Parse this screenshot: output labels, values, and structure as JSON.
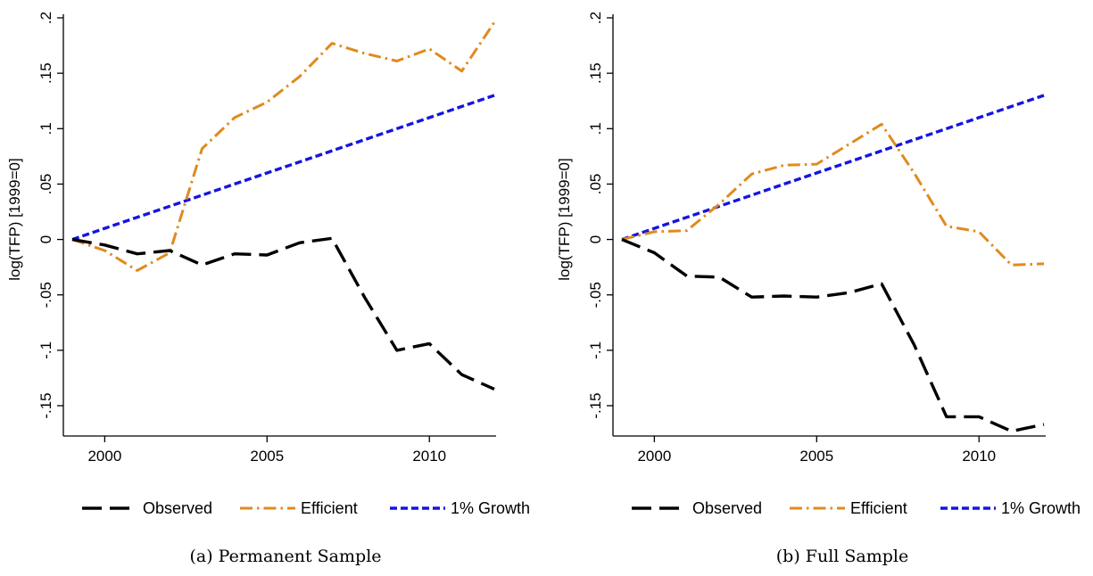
{
  "chart_data": [
    {
      "type": "line",
      "title": "",
      "caption": "(a) Permanent Sample",
      "xlabel": "",
      "ylabel": "log(TFP) [1999=0]",
      "xlim": [
        1999,
        2012
      ],
      "ylim": [
        -0.18,
        0.2
      ],
      "xticks": [
        2000,
        2005,
        2010
      ],
      "xtick_labels": [
        "2000",
        "2005",
        "2010"
      ],
      "yticks": [
        -0.15,
        -0.1,
        -0.05,
        0,
        0.05,
        0.1,
        0.15,
        0.2
      ],
      "ytick_labels": [
        "-.15",
        "-.1",
        "-.05",
        "0",
        ".05",
        ".1",
        ".15",
        ".2"
      ],
      "grid": false,
      "legend_position": "bottom",
      "x": [
        1999,
        2000,
        2001,
        2002,
        2003,
        2004,
        2005,
        2006,
        2007,
        2008,
        2009,
        2010,
        2011,
        2012
      ],
      "series": [
        {
          "name": "Observed",
          "color": "#000000",
          "style": "long-dash",
          "values": [
            0,
            -0.005,
            -0.013,
            -0.01,
            -0.023,
            -0.013,
            -0.014,
            -0.003,
            0.001,
            -0.052,
            -0.1,
            -0.094,
            -0.122,
            -0.135
          ]
        },
        {
          "name": "Efficient",
          "color": "#e08a1e",
          "style": "dash-dot",
          "values": [
            0,
            -0.01,
            -0.028,
            -0.012,
            0.082,
            0.11,
            0.124,
            0.147,
            0.177,
            0.168,
            0.161,
            0.172,
            0.152,
            0.196
          ]
        },
        {
          "name": "1% Growth",
          "color": "#1515e0",
          "style": "short-dash",
          "values": [
            0,
            0.01,
            0.02,
            0.03,
            0.04,
            0.05,
            0.06,
            0.07,
            0.08,
            0.09,
            0.1,
            0.11,
            0.12,
            0.13
          ]
        }
      ]
    },
    {
      "type": "line",
      "title": "",
      "caption": "(b) Full Sample",
      "xlabel": "",
      "ylabel": "log(TFP) [1999=0]",
      "xlim": [
        1999,
        2012
      ],
      "ylim": [
        -0.18,
        0.2
      ],
      "xticks": [
        2000,
        2005,
        2010
      ],
      "xtick_labels": [
        "2000",
        "2005",
        "2010"
      ],
      "yticks": [
        -0.15,
        -0.1,
        -0.05,
        0,
        0.05,
        0.1,
        0.15,
        0.2
      ],
      "ytick_labels": [
        "-.15",
        "-.1",
        "-.05",
        "0",
        ".05",
        ".1",
        ".15",
        ".2"
      ],
      "grid": false,
      "legend_position": "bottom",
      "x": [
        1999,
        2000,
        2001,
        2002,
        2003,
        2004,
        2005,
        2006,
        2007,
        2008,
        2009,
        2010,
        2011,
        2012
      ],
      "series": [
        {
          "name": "Observed",
          "color": "#000000",
          "style": "long-dash",
          "values": [
            0,
            -0.012,
            -0.033,
            -0.034,
            -0.052,
            -0.051,
            -0.052,
            -0.048,
            -0.04,
            -0.095,
            -0.16,
            -0.16,
            -0.173,
            -0.167
          ]
        },
        {
          "name": "Efficient",
          "color": "#e08a1e",
          "style": "dash-dot",
          "values": [
            0,
            0.007,
            0.008,
            0.032,
            0.059,
            0.067,
            0.068,
            0.086,
            0.104,
            0.06,
            0.012,
            0.007,
            -0.023,
            -0.022
          ]
        },
        {
          "name": "1% Growth",
          "color": "#1515e0",
          "style": "short-dash",
          "values": [
            0,
            0.01,
            0.02,
            0.03,
            0.04,
            0.05,
            0.06,
            0.07,
            0.08,
            0.09,
            0.1,
            0.11,
            0.12,
            0.13
          ]
        }
      ]
    }
  ]
}
